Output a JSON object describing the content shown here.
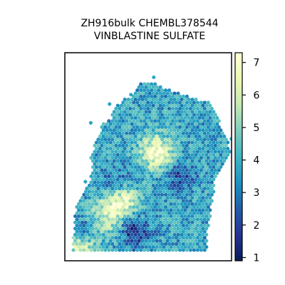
{
  "chart_data": {
    "type": "heatmap",
    "title_lines": [
      "ZH916bulk CHEMBL378544",
      "VINBLASTINE SULFATE"
    ],
    "colorbar": {
      "ticks": [
        "1",
        "2",
        "3",
        "4",
        "5",
        "6",
        "7"
      ],
      "range": [
        0.9,
        7.3
      ],
      "colormap": "YlGnBu_r"
    },
    "colors": {
      "low": "#081d58",
      "mid_low": "#225ea8",
      "mid": "#41b6c4",
      "mid_high": "#c7e9b4",
      "high": "#ffffd9"
    },
    "hotspots": [
      {
        "x": 6.2,
        "y": 7.3,
        "value": 7.0
      },
      {
        "x": 3.6,
        "y": 3.7,
        "value": 6.6
      },
      {
        "x": 0.6,
        "y": 0.3,
        "value": 6.4
      },
      {
        "x": 2.4,
        "y": 2.4,
        "value": 5.6
      }
    ],
    "coldspots": [
      {
        "x": 4.6,
        "y": 1.4,
        "value": 1.5
      },
      {
        "x": 0.8,
        "y": 1.3,
        "value": 2.0
      },
      {
        "x": 8.0,
        "y": 5.6,
        "value": 2.1
      },
      {
        "x": 3.2,
        "y": 5.0,
        "value": 2.3
      }
    ],
    "baseline_value": 3.7
  }
}
